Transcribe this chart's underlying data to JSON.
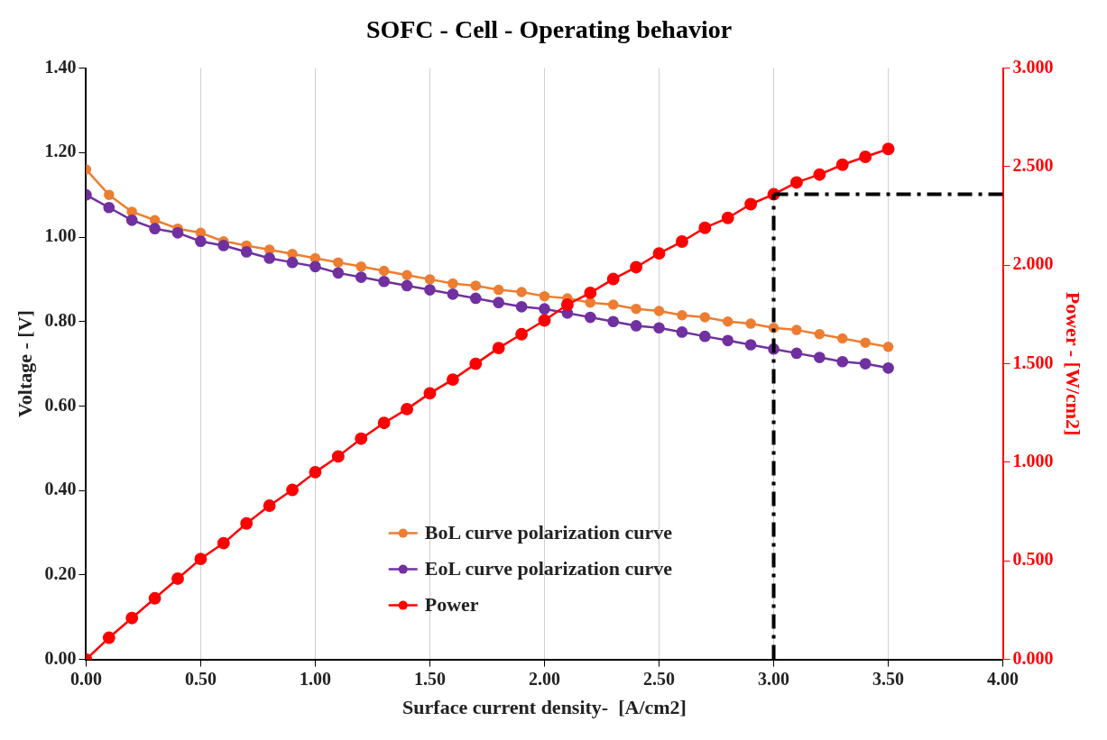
{
  "chart_data": {
    "type": "line",
    "title": "SOFC - Cell - Operating behavior",
    "xlabel": "Surface current density-  [A/cm2]",
    "ylabel": "Voltage - [V]",
    "y2label": "Power - [W/cm2]",
    "x": [
      0,
      0.1,
      0.2,
      0.3,
      0.4,
      0.5,
      0.6,
      0.7,
      0.8,
      0.9,
      1.0,
      1.1,
      1.2,
      1.3,
      1.4,
      1.5,
      1.6,
      1.7,
      1.8,
      1.9,
      2.0,
      2.1,
      2.2,
      2.3,
      2.4,
      2.5,
      2.6,
      2.7,
      2.8,
      2.9,
      3.0,
      3.1,
      3.2,
      3.3,
      3.4,
      3.5
    ],
    "series": [
      {
        "name": "BoL curve polarization curve",
        "color": "#ed7d31",
        "values": [
          1.16,
          1.1,
          1.06,
          1.04,
          1.02,
          1.01,
          0.99,
          0.98,
          0.97,
          0.96,
          0.95,
          0.94,
          0.93,
          0.92,
          0.91,
          0.9,
          0.89,
          0.885,
          0.875,
          0.87,
          0.86,
          0.855,
          0.845,
          0.84,
          0.83,
          0.825,
          0.815,
          0.81,
          0.8,
          0.795,
          0.785,
          0.78,
          0.77,
          0.76,
          0.75,
          0.74
        ]
      },
      {
        "name": "EoL curve polarization curve",
        "color": "#7030a0",
        "values": [
          1.1,
          1.07,
          1.04,
          1.02,
          1.01,
          0.99,
          0.98,
          0.965,
          0.95,
          0.94,
          0.93,
          0.915,
          0.905,
          0.895,
          0.885,
          0.875,
          0.865,
          0.855,
          0.845,
          0.835,
          0.83,
          0.82,
          0.81,
          0.8,
          0.79,
          0.785,
          0.775,
          0.765,
          0.755,
          0.745,
          0.735,
          0.725,
          0.715,
          0.705,
          0.7,
          0.69
        ]
      },
      {
        "name": "Power",
        "color": "#ff0000",
        "axis": "y2",
        "values": [
          0,
          0.11,
          0.21,
          0.31,
          0.41,
          0.51,
          0.59,
          0.69,
          0.78,
          0.86,
          0.95,
          1.03,
          1.12,
          1.2,
          1.27,
          1.35,
          1.42,
          1.5,
          1.58,
          1.65,
          1.72,
          1.8,
          1.86,
          1.93,
          1.99,
          2.06,
          2.12,
          2.19,
          2.24,
          2.31,
          2.36,
          2.42,
          2.46,
          2.51,
          2.55,
          2.59
        ]
      }
    ],
    "xlim": [
      0,
      4
    ],
    "xticks": [
      {
        "value": 0,
        "label": "0.00"
      },
      {
        "value": 0.5,
        "label": "0.50"
      },
      {
        "value": 1,
        "label": "1.00"
      },
      {
        "value": 1.5,
        "label": "1.50"
      },
      {
        "value": 2,
        "label": "2.00"
      },
      {
        "value": 2.5,
        "label": "2.50"
      },
      {
        "value": 3,
        "label": "3.00"
      },
      {
        "value": 3.5,
        "label": "3.50"
      },
      {
        "value": 4,
        "label": "4.00"
      }
    ],
    "ylim": [
      0,
      1.4
    ],
    "yticks": [
      {
        "value": 0,
        "label": "0.00"
      },
      {
        "value": 0.2,
        "label": "0.20"
      },
      {
        "value": 0.4,
        "label": "0.40"
      },
      {
        "value": 0.6,
        "label": "0.60"
      },
      {
        "value": 0.8,
        "label": "0.80"
      },
      {
        "value": 1,
        "label": "1.00"
      },
      {
        "value": 1.2,
        "label": "1.20"
      },
      {
        "value": 1.4,
        "label": "1.40"
      }
    ],
    "y2lim": [
      0,
      3
    ],
    "y2ticks": [
      {
        "value": 0,
        "label": "0.000"
      },
      {
        "value": 0.5,
        "label": "0.500"
      },
      {
        "value": 1,
        "label": "1.000"
      },
      {
        "value": 1.5,
        "label": "1.500"
      },
      {
        "value": 2,
        "label": "2.000"
      },
      {
        "value": 2.5,
        "label": "2.500"
      },
      {
        "value": 3,
        "label": "3.000"
      }
    ],
    "ref_lines": [
      {
        "axis": "x",
        "value": 3.0,
        "color": "#000000",
        "line_style": "dashed"
      },
      {
        "axis": "y2",
        "value": 2.36,
        "color": "#000000",
        "line_style": "dashed"
      }
    ],
    "grid": "x",
    "legend": "bottom",
    "marker": "circle",
    "line_style": "solid"
  }
}
